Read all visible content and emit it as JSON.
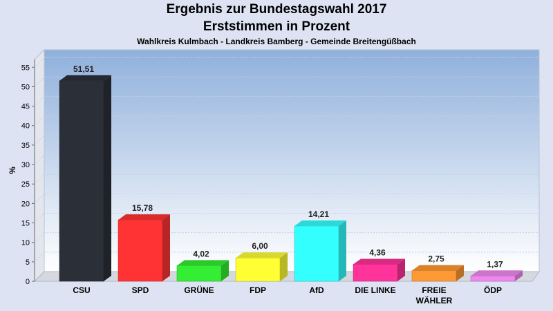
{
  "header": {
    "title": "Ergebnis zur Bundestagswahl 2017",
    "subtitle": "Erststimmen in Prozent",
    "location": "Wahlkreis Kulmbach - Landkreis Bamberg - Gemeinde Breitengüßbach"
  },
  "chart_data": {
    "type": "bar",
    "title": "Ergebnis zur Bundestagswahl 2017",
    "subtitle": "Erststimmen in Prozent",
    "xlabel": "",
    "ylabel": "%",
    "ylim": [
      0,
      57
    ],
    "yticks": [
      0,
      5,
      10,
      15,
      20,
      25,
      30,
      35,
      40,
      45,
      50,
      55
    ],
    "grid": true,
    "categories": [
      "CSU",
      "SPD",
      "GRÜNE",
      "FDP",
      "AfD",
      "DIE LINKE",
      "FREIE WÄHLER",
      "ÖDP"
    ],
    "category_lines": [
      [
        "CSU"
      ],
      [
        "SPD"
      ],
      [
        "GRÜNE"
      ],
      [
        "FDP"
      ],
      [
        "AfD"
      ],
      [
        "DIE LINKE"
      ],
      [
        "FREIE",
        "WÄHLER"
      ],
      [
        "ÖDP"
      ]
    ],
    "values": [
      51.51,
      15.78,
      4.02,
      6.0,
      14.21,
      4.36,
      2.75,
      1.37
    ],
    "value_labels": [
      "51,51",
      "15,78",
      "4,02",
      "6,00",
      "14,21",
      "4,36",
      "2,75",
      "1,37"
    ],
    "colors": [
      "#2b2f38",
      "#ff3333",
      "#33ee33",
      "#ffff33",
      "#33ffff",
      "#ff3399",
      "#ff9933",
      "#ee88ee"
    ]
  }
}
